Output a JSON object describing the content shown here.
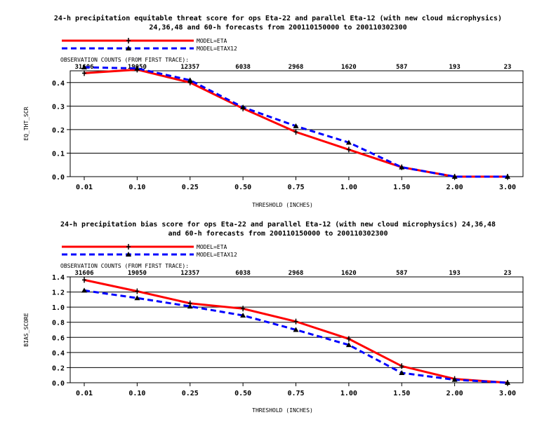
{
  "charts": [
    {
      "title_line1": "24-h precipitation equitable threat score for ops Eta-22 and parallel Eta-12 (with new cloud microphysics)",
      "title_line2": "24,36,48 and 60-h forecasts from 200110150000 to 200110302300",
      "obs_label": "OBSERVATION COUNTS (FROM FIRST TRACE):"
    },
    {
      "title_line1": "24-h precipitation bias score for ops Eta-22 and parallel Eta-12 (with new cloud microphysics) 24,36,48",
      "title_line2": "and 60-h forecasts from 200110150000 to 200110302300",
      "obs_label": "OBSERVATION COUNTS (FROM FIRST TRACE):"
    }
  ],
  "chart_data": [
    {
      "type": "line",
      "categories": [
        "0.01",
        "0.10",
        "0.25",
        "0.50",
        "0.75",
        "1.00",
        "1.50",
        "2.00",
        "3.00"
      ],
      "observation_counts": [
        "31606",
        "19050",
        "12357",
        "6038",
        "2968",
        "1620",
        "587",
        "193",
        "23"
      ],
      "xlabel": "THRESHOLD (INCHES)",
      "ylabel": "EQ_THT_SCR",
      "ylim": [
        0,
        0.45
      ],
      "yticks": [
        "0.0",
        "0.1",
        "0.2",
        "0.3",
        "0.4"
      ],
      "grid": "horizontal",
      "legend_position": "top-left",
      "series": [
        {
          "name": "MODEL=ETA",
          "color": "#ff0000",
          "style": "solid",
          "marker": "plus",
          "values": [
            0.44,
            0.455,
            0.4,
            0.29,
            0.19,
            0.115,
            0.04,
            0.0,
            0.0
          ]
        },
        {
          "name": "MODEL=ETAX12",
          "color": "#0000ff",
          "style": "dashed",
          "marker": "triangle",
          "values": [
            0.465,
            0.46,
            0.41,
            0.295,
            0.215,
            0.145,
            0.04,
            0.0,
            0.0
          ]
        }
      ]
    },
    {
      "type": "line",
      "categories": [
        "0.01",
        "0.10",
        "0.25",
        "0.50",
        "0.75",
        "1.00",
        "1.50",
        "2.00",
        "3.00"
      ],
      "observation_counts": [
        "31606",
        "19050",
        "12357",
        "6038",
        "2968",
        "1620",
        "587",
        "193",
        "23"
      ],
      "xlabel": "THRESHOLD (INCHES)",
      "ylabel": "BIAS_SCORE",
      "ylim": [
        0,
        1.4
      ],
      "yticks": [
        "0.0",
        "0.2",
        "0.4",
        "0.6",
        "0.8",
        "1.0",
        "1.2",
        "1.4"
      ],
      "grid": "horizontal",
      "legend_position": "top-left",
      "series": [
        {
          "name": "MODEL=ETA",
          "color": "#ff0000",
          "style": "solid",
          "marker": "plus",
          "values": [
            1.36,
            1.21,
            1.05,
            0.98,
            0.81,
            0.58,
            0.22,
            0.05,
            0.0
          ]
        },
        {
          "name": "MODEL=ETAX12",
          "color": "#0000ff",
          "style": "dashed",
          "marker": "triangle",
          "values": [
            1.22,
            1.12,
            1.01,
            0.89,
            0.7,
            0.5,
            0.13,
            0.04,
            0.0
          ]
        }
      ]
    }
  ]
}
